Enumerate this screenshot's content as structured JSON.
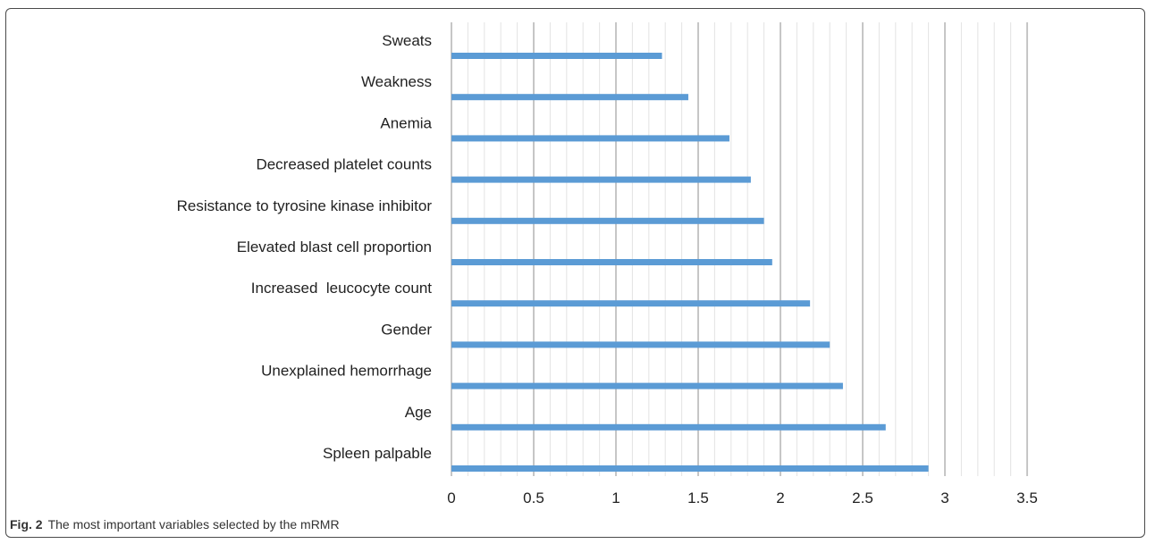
{
  "chart_data": {
    "type": "bar",
    "orientation": "horizontal",
    "categories": [
      "Sweats",
      "Weakness",
      "Anemia",
      "Decreased platelet counts",
      "Resistance to tyrosine kinase inhibitor",
      "Elevated blast cell proportion",
      "Increased  leucocyte count",
      "Gender",
      "Unexplained hemorrhage",
      "Age",
      "Spleen palpable"
    ],
    "values": [
      1.28,
      1.44,
      1.69,
      1.82,
      1.9,
      1.95,
      2.18,
      2.3,
      2.38,
      2.64,
      2.9
    ],
    "xlim": [
      0,
      3.5
    ],
    "xticks": [
      "0",
      "0.5",
      "1",
      "1.5",
      "2",
      "2.5",
      "3",
      "3.5"
    ],
    "grid": true,
    "legend": "none",
    "bar_color": "#5b9bd5"
  },
  "caption": {
    "label": "Fig. 2",
    "text": "The most important variables selected by the mRMR"
  }
}
